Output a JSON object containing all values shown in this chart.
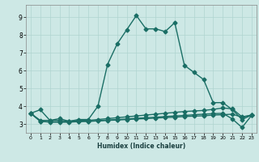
{
  "title": "",
  "xlabel": "Humidex (Indice chaleur)",
  "ylabel": "",
  "background_color": "#cde8e5",
  "grid_color": "#b0d4d0",
  "line_color": "#1a6e65",
  "xlim": [
    -0.5,
    23.5
  ],
  "ylim": [
    2.5,
    9.7
  ],
  "xticks": [
    0,
    1,
    2,
    3,
    4,
    5,
    6,
    7,
    8,
    9,
    10,
    11,
    12,
    13,
    14,
    15,
    16,
    17,
    18,
    19,
    20,
    21,
    22,
    23
  ],
  "yticks": [
    3,
    4,
    5,
    6,
    7,
    8,
    9
  ],
  "series": [
    {
      "x": [
        0,
        1,
        2,
        3,
        4,
        5,
        6,
        7,
        8,
        9,
        10,
        11,
        12,
        13,
        14,
        15,
        16,
        17,
        18,
        19,
        20,
        21,
        22,
        23
      ],
      "y": [
        3.6,
        3.8,
        3.2,
        3.3,
        3.15,
        3.25,
        3.25,
        4.0,
        6.35,
        7.5,
        8.3,
        9.1,
        8.35,
        8.35,
        8.2,
        8.7,
        6.3,
        5.9,
        5.5,
        4.2,
        4.2,
        3.8,
        3.25,
        3.5
      ],
      "style": "-",
      "marker": "D",
      "markersize": 2.5,
      "linewidth": 1.0
    },
    {
      "x": [
        0,
        1,
        2,
        3,
        4,
        5,
        6,
        7,
        8,
        9,
        10,
        11,
        12,
        13,
        14,
        15,
        16,
        17,
        18,
        19,
        20,
        21,
        22,
        23
      ],
      "y": [
        3.6,
        3.2,
        3.2,
        3.2,
        3.15,
        3.2,
        3.2,
        3.25,
        3.3,
        3.35,
        3.4,
        3.45,
        3.5,
        3.55,
        3.6,
        3.65,
        3.7,
        3.73,
        3.76,
        3.82,
        3.9,
        3.85,
        3.4,
        3.5
      ],
      "style": "-",
      "marker": "D",
      "markersize": 2.5,
      "linewidth": 1.0
    },
    {
      "x": [
        0,
        1,
        2,
        3,
        4,
        5,
        6,
        7,
        8,
        9,
        10,
        11,
        12,
        13,
        14,
        15,
        16,
        17,
        18,
        19,
        20,
        21,
        22,
        23
      ],
      "y": [
        3.6,
        3.15,
        3.12,
        3.12,
        3.12,
        3.15,
        3.15,
        3.18,
        3.22,
        3.25,
        3.28,
        3.32,
        3.35,
        3.38,
        3.42,
        3.45,
        3.48,
        3.52,
        3.55,
        3.58,
        3.6,
        3.28,
        2.8,
        3.48
      ],
      "style": "-",
      "marker": "D",
      "markersize": 2.5,
      "linewidth": 1.0
    },
    {
      "x": [
        0,
        1,
        2,
        3,
        4,
        5,
        6,
        7,
        8,
        9,
        10,
        11,
        12,
        13,
        14,
        15,
        16,
        17,
        18,
        19,
        20,
        21,
        22,
        23
      ],
      "y": [
        3.6,
        3.15,
        3.1,
        3.1,
        3.1,
        3.13,
        3.15,
        3.17,
        3.2,
        3.22,
        3.25,
        3.28,
        3.3,
        3.33,
        3.36,
        3.38,
        3.42,
        3.44,
        3.46,
        3.5,
        3.52,
        3.55,
        3.38,
        3.48
      ],
      "style": "-",
      "marker": "D",
      "markersize": 2.5,
      "linewidth": 1.0
    }
  ]
}
